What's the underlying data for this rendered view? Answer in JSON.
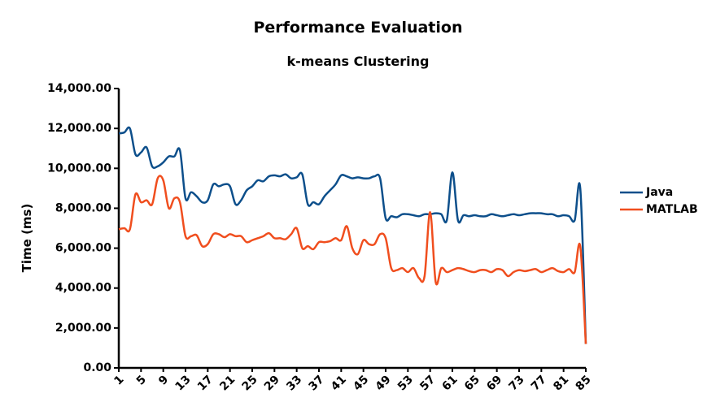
{
  "chart_data": {
    "type": "line",
    "title": "Performance Evaluation",
    "subtitle": "k-means Clustering",
    "y_label": "Time (ms)",
    "x": [
      1,
      2,
      3,
      4,
      5,
      6,
      7,
      8,
      9,
      10,
      11,
      12,
      13,
      14,
      15,
      16,
      17,
      18,
      19,
      20,
      21,
      22,
      23,
      24,
      25,
      26,
      27,
      28,
      29,
      30,
      31,
      32,
      33,
      34,
      35,
      36,
      37,
      38,
      39,
      40,
      41,
      42,
      43,
      44,
      45,
      46,
      47,
      48,
      49,
      50,
      51,
      52,
      53,
      54,
      55,
      56,
      57,
      58,
      59,
      60,
      61,
      62,
      63,
      64,
      65,
      66,
      67,
      68,
      69,
      70,
      71,
      72,
      73,
      74,
      75,
      76,
      77,
      78,
      79,
      80,
      81,
      82,
      83,
      84,
      85
    ],
    "xlim": [
      1,
      85
    ],
    "xticks": [
      1,
      5,
      9,
      13,
      17,
      21,
      25,
      29,
      33,
      37,
      41,
      45,
      49,
      53,
      57,
      61,
      65,
      69,
      73,
      77,
      81,
      85
    ],
    "ylim": [
      0,
      14000
    ],
    "yticks": [
      {
        "value": 0,
        "label": "0.00"
      },
      {
        "value": 2000,
        "label": "2,000.00"
      },
      {
        "value": 4000,
        "label": "4,000.00"
      },
      {
        "value": 6000,
        "label": "6,000.00"
      },
      {
        "value": 8000,
        "label": "8,000.00"
      },
      {
        "value": 10000,
        "label": "10,000.00"
      },
      {
        "value": 12000,
        "label": "12,000.00"
      },
      {
        "value": 14000,
        "label": "14,000.00"
      }
    ],
    "legend": "right",
    "series": [
      {
        "name": "Java",
        "color": "#0d4f8b",
        "values": [
          11750,
          11800,
          12000,
          10700,
          10800,
          11050,
          10100,
          10100,
          10300,
          10600,
          10600,
          10900,
          8500,
          8800,
          8600,
          8300,
          8400,
          9200,
          9100,
          9200,
          9100,
          8200,
          8400,
          8900,
          9100,
          9400,
          9350,
          9600,
          9650,
          9600,
          9700,
          9500,
          9550,
          9700,
          8200,
          8300,
          8200,
          8600,
          8900,
          9200,
          9650,
          9600,
          9500,
          9550,
          9500,
          9500,
          9600,
          9500,
          7500,
          7600,
          7550,
          7700,
          7700,
          7650,
          7600,
          7700,
          7700,
          7750,
          7700,
          7400,
          9800,
          7400,
          7650,
          7600,
          7650,
          7600,
          7600,
          7700,
          7650,
          7600,
          7650,
          7700,
          7650,
          7700,
          7750,
          7750,
          7750,
          7700,
          7700,
          7600,
          7650,
          7600,
          7400,
          9000,
          1200
        ]
      },
      {
        "name": "MATLAB",
        "color": "#f04e1e",
        "values": [
          6950,
          7000,
          6950,
          8700,
          8300,
          8400,
          8200,
          9500,
          9400,
          8000,
          8500,
          8300,
          6600,
          6600,
          6650,
          6100,
          6200,
          6700,
          6700,
          6550,
          6700,
          6600,
          6600,
          6300,
          6400,
          6500,
          6600,
          6750,
          6500,
          6500,
          6450,
          6700,
          7000,
          6000,
          6100,
          5950,
          6300,
          6300,
          6350,
          6500,
          6400,
          7100,
          6000,
          5700,
          6400,
          6200,
          6200,
          6700,
          6500,
          5000,
          4900,
          5000,
          4800,
          5000,
          4500,
          4600,
          7800,
          4300,
          5000,
          4800,
          4900,
          5000,
          4950,
          4850,
          4800,
          4900,
          4900,
          4800,
          4950,
          4900,
          4600,
          4800,
          4900,
          4850,
          4900,
          4950,
          4800,
          4900,
          5000,
          4850,
          4800,
          4950,
          4800,
          6100,
          1200
        ]
      }
    ]
  }
}
